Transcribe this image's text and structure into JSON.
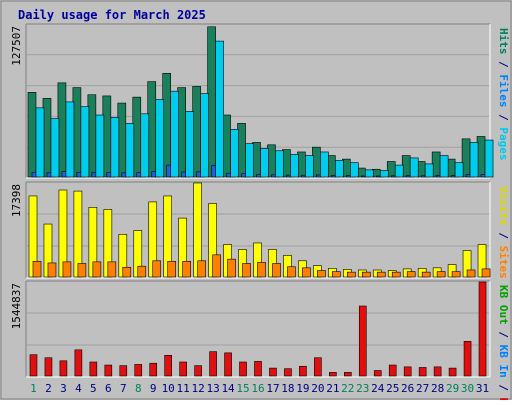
{
  "chart_data": {
    "type": "bar",
    "title": "Daily usage for March 2025",
    "categories": [
      "1",
      "2",
      "3",
      "4",
      "5",
      "6",
      "7",
      "8",
      "9",
      "10",
      "11",
      "12",
      "13",
      "14",
      "15",
      "16",
      "17",
      "18",
      "19",
      "20",
      "21",
      "22",
      "23",
      "24",
      "25",
      "26",
      "27",
      "28",
      "29",
      "30",
      "31"
    ],
    "weekend_days": [
      1,
      8,
      15,
      16,
      22,
      23,
      29,
      30
    ],
    "panels": [
      {
        "name": "hits-files-pages",
        "max_label": "127507",
        "ymax": 127507,
        "right_labels": [
          {
            "text": "Pages",
            "color": "#00c8e8"
          },
          {
            "text": " / ",
            "color": "#000080"
          },
          {
            "text": "Files",
            "color": "#0080ff"
          },
          {
            "text": " / ",
            "color": "#000080"
          },
          {
            "text": "Hits",
            "color": "#00805c"
          }
        ],
        "series": [
          {
            "name": "Hits",
            "color": "#1a805c",
            "values": [
              71000,
              66000,
              79000,
              75000,
              69000,
              68000,
              62000,
              67000,
              80000,
              87000,
              75000,
              76000,
              126000,
              52000,
              45000,
              29000,
              27000,
              23000,
              21000,
              25000,
              18000,
              15000,
              7500,
              6500,
              13000,
              18000,
              13000,
              21000,
              15000,
              32000,
              34000
            ]
          },
          {
            "name": "Files",
            "color": "#2060e0",
            "values": [
              4000,
              3500,
              4500,
              4000,
              3800,
              3700,
              3500,
              3600,
              4500,
              10000,
              4200,
              4300,
              9500,
              3200,
              2800,
              1900,
              1800,
              1600,
              1500,
              1700,
              1300,
              1100,
              800,
              700,
              1000,
              1300,
              1000,
              1500,
              1100,
              2000,
              2100
            ]
          },
          {
            "name": "Pages",
            "color": "#00ccee",
            "values": [
              58000,
              49000,
              63000,
              59000,
              52000,
              50000,
              45000,
              53000,
              65000,
              72000,
              55000,
              70000,
              114000,
              40000,
              28000,
              24000,
              22000,
              19000,
              18000,
              21000,
              14000,
              12000,
              6000,
              5500,
              10000,
              16000,
              11000,
              18000,
              12000,
              29000,
              31000
            ]
          }
        ]
      },
      {
        "name": "visits-sites",
        "max_label": "17398",
        "ymax": 17398,
        "right_labels": [
          {
            "text": "Sites",
            "color": "#ff8000"
          },
          {
            "text": " / ",
            "color": "#000080"
          },
          {
            "text": "Visits",
            "color": "#d8d800"
          }
        ],
        "series": [
          {
            "name": "Visits",
            "color": "#ffff00",
            "values": [
              15000,
              9800,
              16100,
              15900,
              12900,
              12500,
              7900,
              8600,
              13900,
              15000,
              10900,
              17400,
              13600,
              6000,
              5100,
              6300,
              5100,
              4000,
              3000,
              2100,
              1600,
              1400,
              1300,
              1300,
              1200,
              1500,
              1600,
              1700,
              2300,
              4900,
              6000
            ]
          },
          {
            "name": "Sites",
            "color": "#ff8000",
            "values": [
              2900,
              2600,
              2800,
              2500,
              2800,
              2800,
              1800,
              2000,
              3000,
              2900,
              2900,
              3000,
              4100,
              3300,
              2500,
              2700,
              2500,
              1900,
              1700,
              1200,
              1000,
              900,
              900,
              900,
              900,
              1000,
              900,
              1000,
              1000,
              1300,
              1500
            ]
          }
        ]
      },
      {
        "name": "kbytes",
        "max_label": "1544837",
        "ymax": 1544837,
        "right_labels": [
          {
            "text": "KB F",
            "color": "#d00000"
          },
          {
            "text": " / ",
            "color": "#000080"
          },
          {
            "text": "KB In",
            "color": "#0080ff"
          },
          {
            "text": " / ",
            "color": "#000080"
          },
          {
            "text": "KB Out",
            "color": "#00a000"
          }
        ],
        "series": [
          {
            "name": "KB F",
            "color": "#e01010",
            "values": [
              350000,
              300000,
              250000,
              430000,
              230000,
              180000,
              170000,
              190000,
              210000,
              340000,
              230000,
              170000,
              400000,
              380000,
              230000,
              240000,
              130000,
              120000,
              160000,
              300000,
              60000,
              60000,
              1150000,
              90000,
              180000,
              150000,
              140000,
              150000,
              130000,
              570000,
              1544837
            ]
          }
        ]
      }
    ],
    "x_tick_colors": {
      "weekday": "#000080",
      "weekend": "#00805c"
    }
  }
}
